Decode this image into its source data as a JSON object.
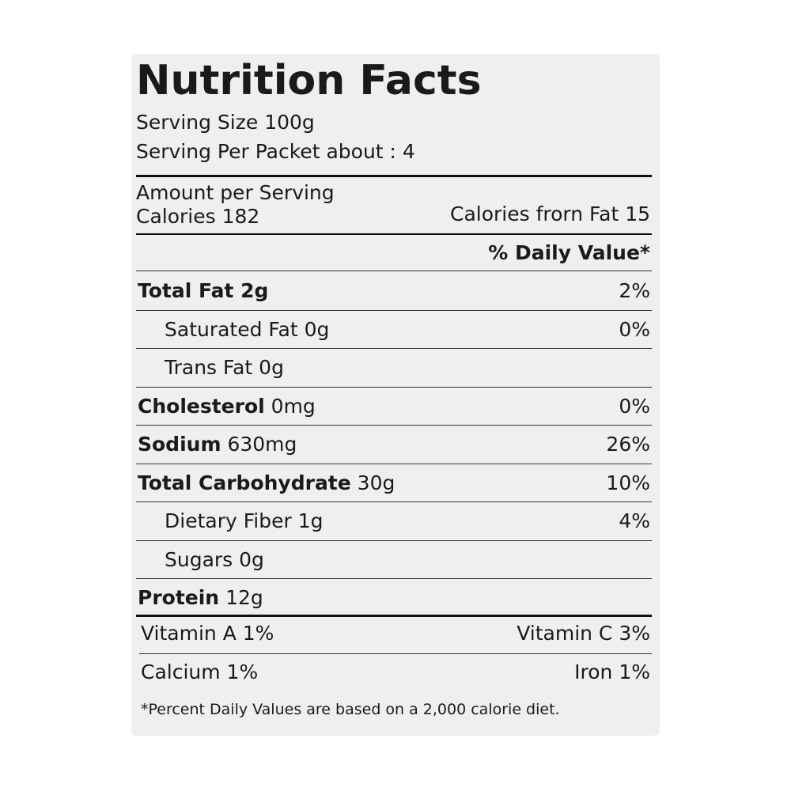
{
  "header": {
    "title": "Nutrition Facts",
    "serving_size": "Serving Size 100g",
    "servings_per_packet": "Serving Per Packet about : 4"
  },
  "amount": {
    "label": "Amount per Serving",
    "calories": "Calories 182",
    "calories_from_fat": "Calories frorn Fat 15"
  },
  "daily_value_header": "% Daily Value*",
  "nutrients": [
    {
      "name": "Total Fat 2g",
      "dv": "2%"
    },
    {
      "name": "Saturated Fat 0g",
      "dv": "0%"
    },
    {
      "name": "Trans Fat 0g"
    },
    {
      "name": "Cholesterol",
      "amount": "0mg",
      "dv": "0%"
    },
    {
      "name": "Sodium",
      "amount": "630mg",
      "dv": "26%"
    },
    {
      "name": "Total Carbohydrate",
      "amount": "30g",
      "dv": "10%"
    },
    {
      "name": "Dietary Fiber 1g",
      "dv": "4%"
    },
    {
      "name": "Sugars 0g"
    },
    {
      "name": "Protein",
      "amount": "12g"
    }
  ],
  "vitamins": [
    [
      "Vitamin A 1%",
      "Vitamin C 3%"
    ],
    [
      "Calcium 1%",
      "Iron 1%"
    ]
  ],
  "footnote": "*Percent Daily Values are based on a 2,000 calorie diet."
}
